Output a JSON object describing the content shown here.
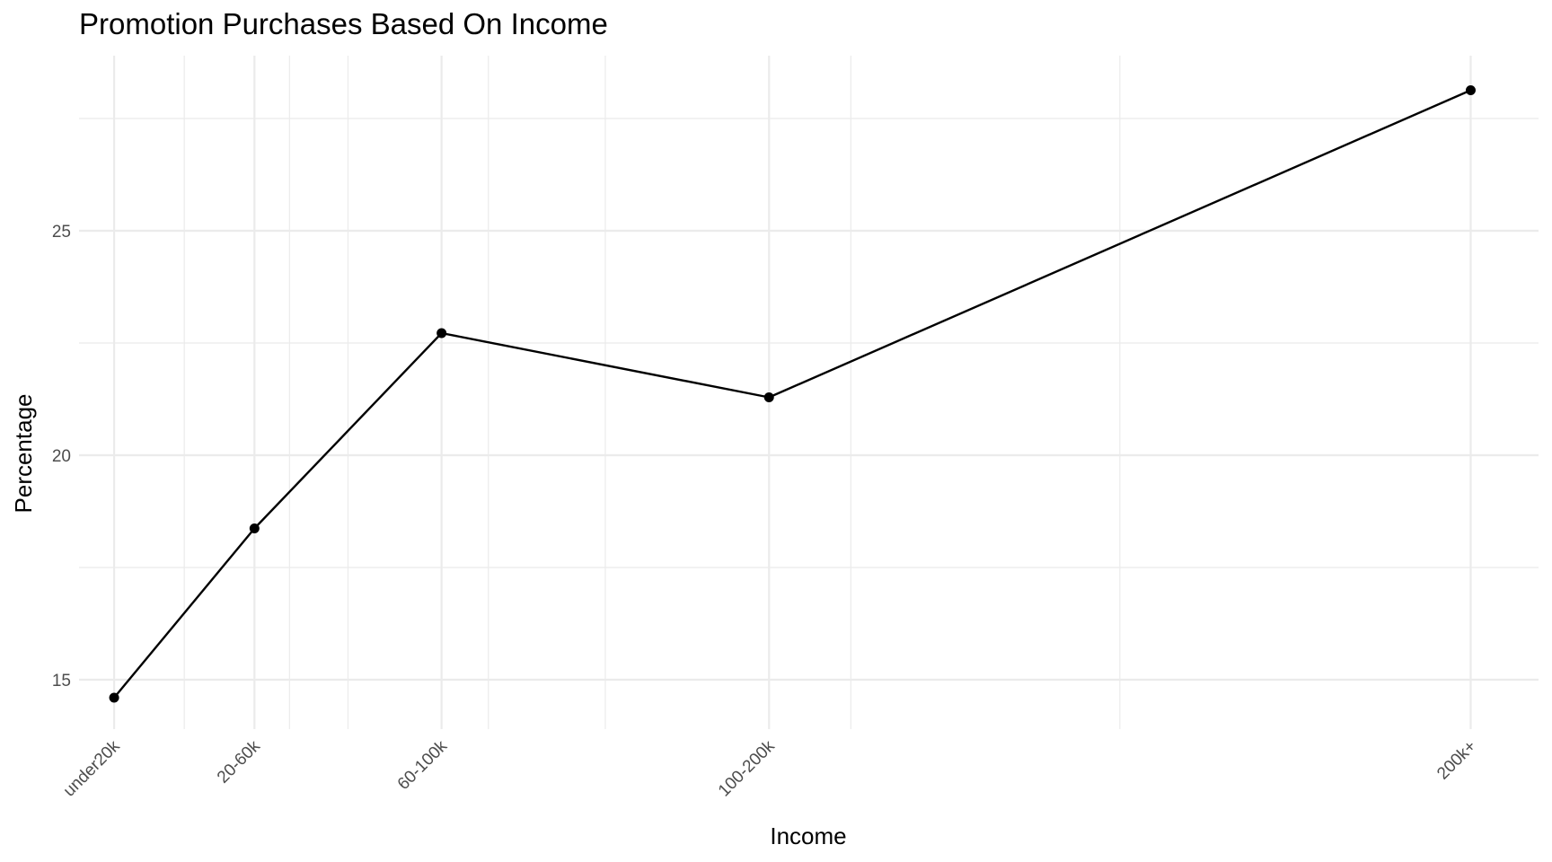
{
  "chart_data": {
    "type": "line",
    "title": "Promotion Purchases Based On Income",
    "xlabel": "Income",
    "ylabel": "Percentage",
    "categories": [
      "under20k",
      "20-60k",
      "60-100k",
      "100-200k",
      "200k+"
    ],
    "x": [
      10,
      40,
      80,
      150,
      300
    ],
    "values": [
      14.6,
      18.37,
      22.72,
      21.29,
      28.13
    ],
    "ylim": [
      13.9,
      28.9
    ],
    "yticks": [
      15,
      20,
      25
    ],
    "grid": true,
    "legend": "none",
    "line_color": "#000000",
    "grid_color": "#ebebeb"
  }
}
